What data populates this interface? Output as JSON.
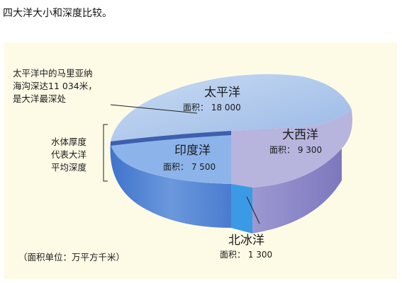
{
  "question": "四大洋大小和深度比较。",
  "chart_data": {
    "type": "pie",
    "categories": [
      "太平洋",
      "大西洋",
      "印度洋",
      "北冰洋"
    ],
    "values": [
      18000,
      9300,
      7500,
      1300
    ],
    "area_label": "面积：",
    "area_texts": [
      "18 000",
      "9 300",
      "7 500",
      "1 300"
    ],
    "annotation_mariana": [
      "太平洋中的马里亚纳",
      "海沟深达11 034米，",
      "是大洋最深处"
    ],
    "annotation_thickness": [
      "水体厚度",
      "代表大洋",
      "平均深度"
    ],
    "unit_note": "（面积单位：万平方千米）",
    "colors": {
      "pacific_top": "#a9c3e8",
      "pacific_side": "#6f93d6",
      "atlantic_top": "#b9b6de",
      "atlantic_side": "#8e88c8",
      "indian_top": "#8fb6ea",
      "indian_side": "#4f7fd0",
      "arctic": "#2f8fe0",
      "background": "#fdfbe6"
    }
  }
}
